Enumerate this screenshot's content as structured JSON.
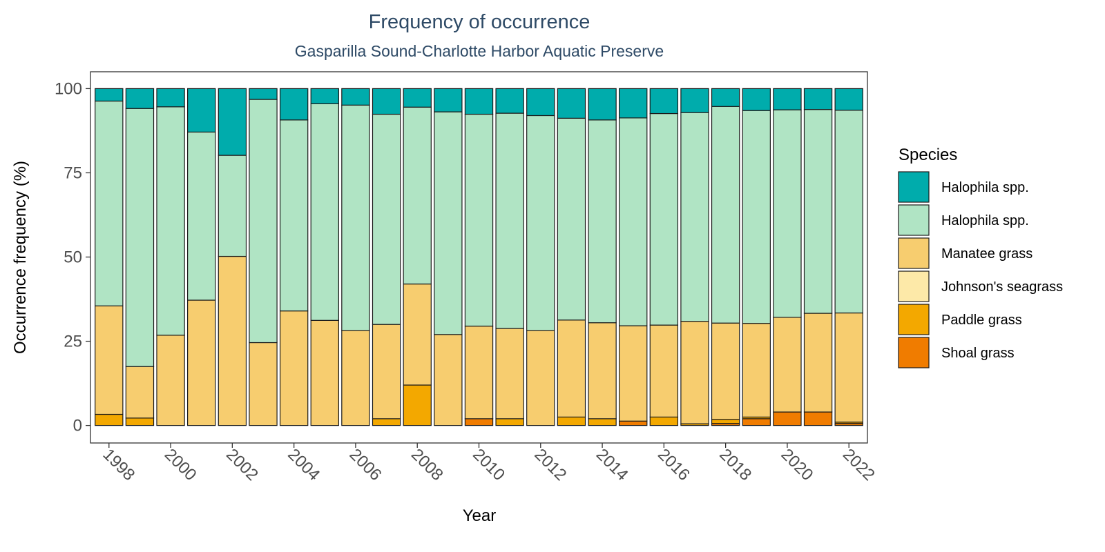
{
  "chart_data": {
    "type": "bar",
    "stacked": true,
    "title": "Frequency of occurrence",
    "subtitle": "Gasparilla Sound-Charlotte Harbor Aquatic Preserve",
    "xlabel": "Year",
    "ylabel": "Occurrence frequency (%)",
    "ylim": [
      0,
      105
    ],
    "y_ticks": [
      "0",
      "25",
      "50",
      "75",
      "100"
    ],
    "x_ticks": [
      "1998",
      "2000",
      "2002",
      "2004",
      "2006",
      "2008",
      "2010",
      "2012",
      "2014",
      "2016",
      "2018",
      "2020",
      "2022"
    ],
    "grid": false,
    "legend_title": "Species",
    "legend_position": "right",
    "categories": [
      1998,
      1999,
      2000,
      2001,
      2002,
      2003,
      2004,
      2005,
      2006,
      2007,
      2008,
      2009,
      2010,
      2011,
      2012,
      2013,
      2014,
      2015,
      2016,
      2017,
      2018,
      2019,
      2020,
      2021,
      2022
    ],
    "series": [
      {
        "name": "Shoal grass",
        "color": "#f07c00",
        "values": [
          0,
          0,
          0,
          0,
          0,
          0,
          0,
          0,
          0,
          0,
          0,
          0,
          2,
          0,
          0,
          0,
          0,
          1.3,
          0,
          0,
          0.6,
          2,
          4,
          4,
          0.6
        ]
      },
      {
        "name": "Paddle grass",
        "color": "#f3a800",
        "values": [
          3.3,
          2.2,
          0,
          0,
          0,
          0,
          0,
          0,
          0,
          2,
          12,
          0,
          0,
          2,
          0,
          2.5,
          2,
          0,
          2.5,
          0.5,
          1.2,
          0.5,
          0,
          0,
          0.4
        ]
      },
      {
        "name": "Johnson's seagrass",
        "color": "#fde9a8",
        "values": [
          0,
          0,
          0,
          0,
          0,
          0,
          0,
          0,
          0,
          0,
          0,
          0,
          0,
          0,
          0,
          0,
          0,
          0,
          0,
          0,
          0,
          0,
          0,
          0,
          0
        ]
      },
      {
        "name": "Manatee grass",
        "color": "#f7cd6f",
        "values": [
          32.2,
          15.3,
          26.8,
          37.2,
          50.2,
          24.6,
          34.0,
          31.2,
          28.2,
          28.0,
          30.0,
          27.0,
          27.5,
          26.8,
          28.2,
          28.8,
          28.5,
          28.3,
          27.3,
          30.4,
          28.6,
          27.8,
          28.1,
          29.3,
          32.4
        ]
      },
      {
        "name": "Halophila spp.",
        "color": "#b0e4c4",
        "values": [
          60.8,
          76.6,
          67.8,
          49.9,
          30.0,
          72.2,
          56.7,
          64.3,
          66.9,
          62.4,
          52.5,
          66.1,
          62.9,
          63.9,
          63.8,
          59.9,
          60.2,
          61.7,
          62.8,
          62.0,
          64.3,
          63.2,
          61.6,
          60.5,
          60.2
        ]
      },
      {
        "name": "Halophila spp.",
        "color": "#00acac",
        "values": [
          3.7,
          5.9,
          5.4,
          12.9,
          19.8,
          3.2,
          9.3,
          4.5,
          4.9,
          7.6,
          5.5,
          6.9,
          7.6,
          7.3,
          8.0,
          8.8,
          9.3,
          8.7,
          7.4,
          7.1,
          5.3,
          6.5,
          6.3,
          6.2,
          6.4
        ]
      }
    ]
  }
}
